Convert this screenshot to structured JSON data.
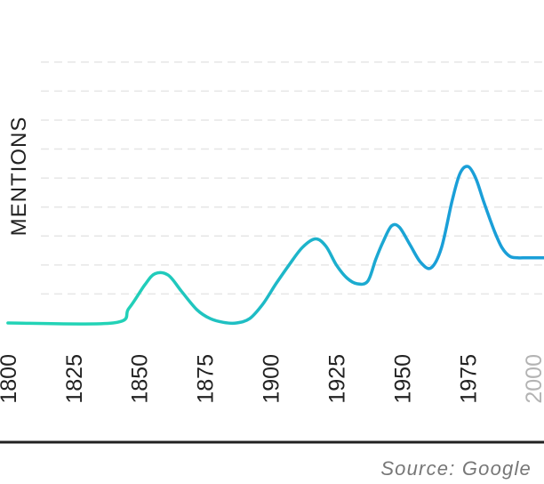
{
  "chart_data": {
    "type": "line",
    "ylabel": "MENTIONS",
    "xlabel": "",
    "title": "",
    "source": "Source: Google",
    "x_ticks": [
      "1800",
      "1825",
      "1850",
      "1875",
      "1900",
      "1925",
      "1950",
      "1975",
      "2000"
    ],
    "muted_ticks": [
      "2000"
    ],
    "grid": "horizontal dashed",
    "gradient_colors": [
      "#22d3b6",
      "#1a9fd8"
    ],
    "x_range": [
      1797,
      2004
    ],
    "y_range": [
      0,
      9.7
    ],
    "series": [
      {
        "x": [
          1800,
          1840,
          1846,
          1852,
          1856,
          1861,
          1866,
          1872,
          1877,
          1882,
          1887,
          1892,
          1897,
          1902,
          1907,
          1912,
          1917,
          1921,
          1925,
          1929,
          1933,
          1937,
          1940,
          1943,
          1946,
          1949,
          1953,
          1957,
          1961,
          1965,
          1969,
          1972,
          1975,
          1978,
          1981,
          1985,
          1988,
          1991,
          1994,
          1997,
          2000,
          2004
        ],
        "y": [
          0,
          0,
          0.5,
          1.3,
          1.7,
          1.65,
          1.1,
          0.45,
          0.15,
          0.02,
          0,
          0.15,
          0.65,
          1.35,
          2.0,
          2.6,
          2.9,
          2.65,
          2.0,
          1.55,
          1.35,
          1.45,
          2.2,
          2.85,
          3.35,
          3.3,
          2.7,
          2.1,
          1.9,
          2.6,
          4.2,
          5.15,
          5.4,
          5.0,
          4.2,
          3.2,
          2.6,
          2.3,
          2.25,
          2.25,
          2.25,
          2.25
        ]
      }
    ]
  }
}
